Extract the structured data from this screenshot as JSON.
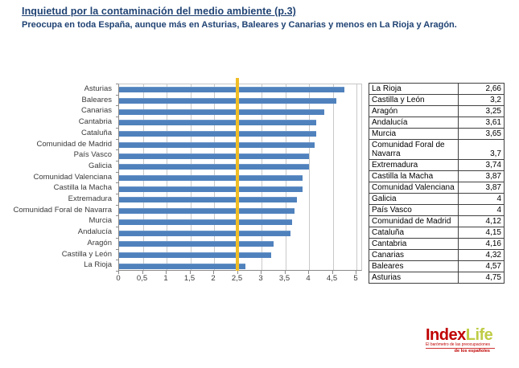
{
  "page": {
    "title": "Inquietud por la contaminación  del medio ambiente (p.3)",
    "subtitle": "Preocupa en toda España, aunque más en Asturias, Baleares y Canarias y menos en La Rioja y Aragón."
  },
  "chart_data": {
    "type": "bar",
    "orientation": "horizontal",
    "title": "",
    "categories": [
      "Asturias",
      "Baleares",
      "Canarias",
      "Cantabria",
      "Cataluña",
      "Comunidad de Madrid",
      "País Vasco",
      "Galicia",
      "Comunidad Valenciana",
      "Castilla la Macha",
      "Extremadura",
      "Comunidad Foral de Navarra",
      "Murcia",
      "Andalucía",
      "Aragón",
      "Castilla y León",
      "La Rioja"
    ],
    "values": [
      4.75,
      4.57,
      4.32,
      4.16,
      4.15,
      4.12,
      4,
      4,
      3.87,
      3.87,
      3.74,
      3.7,
      3.65,
      3.61,
      3.25,
      3.2,
      2.66
    ],
    "xlim": [
      0,
      5
    ],
    "xtick_values": [
      0,
      0.5,
      1,
      1.5,
      2,
      2.5,
      3,
      3.5,
      4,
      4.5,
      5
    ],
    "xtick_labels": [
      "0",
      "0,5",
      "1",
      "1,5",
      "2",
      "2,5",
      "3",
      "3,5",
      "4",
      "4,5",
      "5"
    ],
    "grid": true,
    "legend": "none",
    "bar_color": "#4F81BD",
    "reference_line": {
      "value": 2.5,
      "color": "#EFBD27"
    }
  },
  "table": {
    "rows": [
      {
        "region": "La Rioja",
        "value": "2,66"
      },
      {
        "region": "Castilla y León",
        "value": "3,2"
      },
      {
        "region": "Aragón",
        "value": "3,25"
      },
      {
        "region": "Andalucía",
        "value": "3,61"
      },
      {
        "region": "Murcia",
        "value": "3,65"
      },
      {
        "region": "Comunidad Foral de Navarra",
        "value": "3,7"
      },
      {
        "region": "Extremadura",
        "value": "3,74"
      },
      {
        "region": "Castilla la Macha",
        "value": "3,87"
      },
      {
        "region": "Comunidad Valenciana",
        "value": "3,87"
      },
      {
        "region": "Galicia",
        "value": "4"
      },
      {
        "region": "País Vasco",
        "value": "4"
      },
      {
        "region": "Comunidad de Madrid",
        "value": "4,12"
      },
      {
        "region": "Cataluña",
        "value": "4,15"
      },
      {
        "region": "Cantabria",
        "value": "4,16"
      },
      {
        "region": "Canarias",
        "value": "4,32"
      },
      {
        "region": "Baleares",
        "value": "4,57"
      },
      {
        "region": "Asturias",
        "value": "4,75"
      }
    ]
  },
  "logo": {
    "word1": "Index",
    "word2": "Life",
    "tagline_line1": "El barómetro de las preocupaciones",
    "tagline_line2": "de los españoles",
    "word1_color": "#C00000",
    "word2_color": "#BFCC45"
  },
  "colors": {
    "title_text": "#1F4273",
    "bar": "#4F81BD",
    "reference_line": "#EFBD27",
    "table_border": "#404040"
  }
}
